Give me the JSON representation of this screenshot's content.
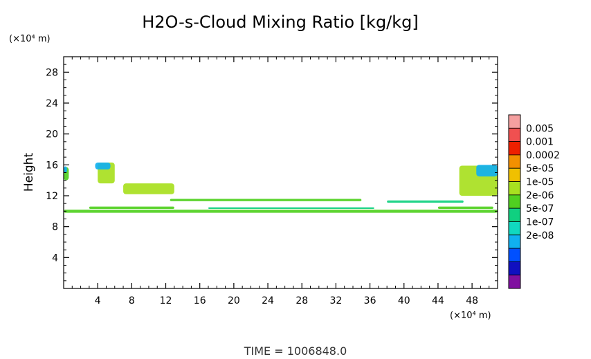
{
  "chart_data": {
    "type": "heatmap",
    "title": "H2O-s-Cloud Mixing Ratio [kg/kg]",
    "ylabel": "Height",
    "y_unit_label": "(×10⁴ m)",
    "x_unit_label": "(×10⁴ m)",
    "xlim": [
      0,
      51
    ],
    "ylim": [
      0,
      30
    ],
    "x_ticks": [
      4,
      8,
      12,
      16,
      20,
      24,
      28,
      32,
      36,
      40,
      44,
      48
    ],
    "y_ticks": [
      4,
      8,
      12,
      16,
      20,
      24,
      28
    ],
    "grid": false,
    "legend_placement": "right",
    "colorbar": {
      "labels": [
        "0.005",
        "0.001",
        "0.0002",
        "5e-05",
        "1e-05",
        "2e-06",
        "5e-07",
        "1e-07",
        "2e-08"
      ],
      "colors": [
        "#f5a0a0",
        "#f05050",
        "#ee2000",
        "#f39000",
        "#f0c000",
        "#a8e020",
        "#50d020",
        "#10d080",
        "#10d8c0",
        "#10b0f0",
        "#0050ff",
        "#1010c0",
        "#8010a0"
      ]
    },
    "cloud_regions": [
      {
        "x0": 0.0,
        "x1": 51.0,
        "y0": 9.8,
        "y1": 10.2,
        "level": "1e-05"
      },
      {
        "x0": 3.0,
        "x1": 13.0,
        "y0": 10.3,
        "y1": 10.6,
        "level": "1e-05"
      },
      {
        "x0": 17.0,
        "x1": 36.5,
        "y0": 10.3,
        "y1": 10.5,
        "level": "2e-06"
      },
      {
        "x0": 44.0,
        "x1": 50.5,
        "y0": 10.3,
        "y1": 10.6,
        "level": "1e-05"
      },
      {
        "x0": 12.5,
        "x1": 35.0,
        "y0": 11.3,
        "y1": 11.6,
        "level": "1e-05"
      },
      {
        "x0": 38.0,
        "x1": 47.0,
        "y0": 11.1,
        "y1": 11.4,
        "level": "2e-06"
      },
      {
        "x0": 7.0,
        "x1": 13.0,
        "y0": 12.2,
        "y1": 13.6,
        "level": "5e-05"
      },
      {
        "x0": 4.0,
        "x1": 6.0,
        "y0": 13.6,
        "y1": 16.3,
        "level": "5e-05"
      },
      {
        "x0": 3.7,
        "x1": 5.5,
        "y0": 15.4,
        "y1": 16.3,
        "level": "1e-07"
      },
      {
        "x0": 0.0,
        "x1": 0.6,
        "y0": 14.0,
        "y1": 15.7,
        "level": "1e-05"
      },
      {
        "x0": 0.0,
        "x1": 0.4,
        "y0": 15.0,
        "y1": 15.8,
        "level": "1e-07"
      },
      {
        "x0": 46.5,
        "x1": 51.0,
        "y0": 12.0,
        "y1": 15.9,
        "level": "5e-05"
      },
      {
        "x0": 48.5,
        "x1": 51.0,
        "y0": 14.5,
        "y1": 16.0,
        "level": "1e-07"
      }
    ],
    "footer_text": "TIME =  1006848.0"
  }
}
